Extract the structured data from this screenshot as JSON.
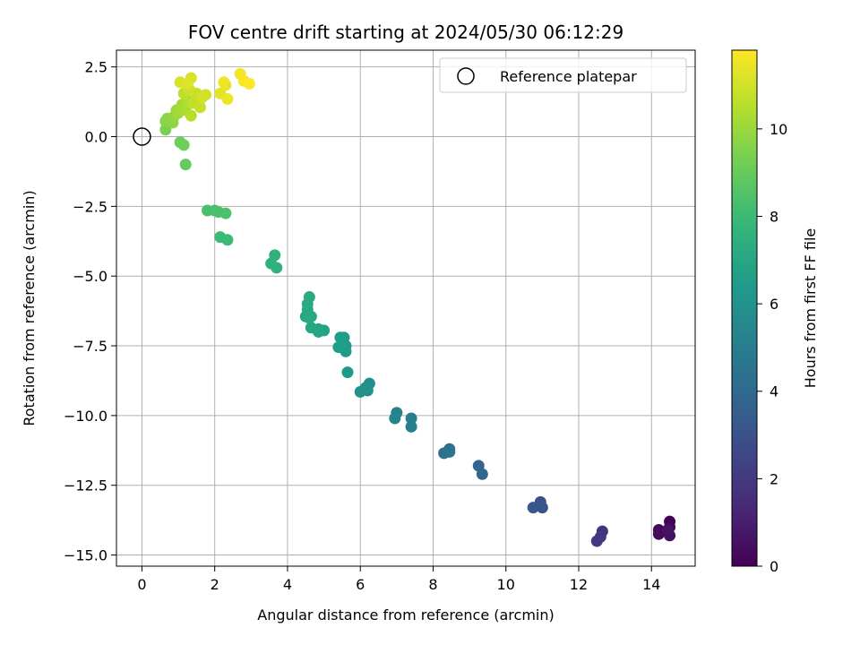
{
  "chart_data": {
    "type": "scatter",
    "title": "FOV centre drift starting at 2024/05/30 06:12:29",
    "xlabel": "Angular distance from reference (arcmin)",
    "ylabel": "Rotation from reference (arcmin)",
    "xlim": [
      -0.7,
      15.2
    ],
    "ylim": [
      -15.4,
      3.1
    ],
    "xticks": [
      0,
      2,
      4,
      6,
      8,
      10,
      12,
      14
    ],
    "yticks": [
      2.5,
      0.0,
      -2.5,
      -5.0,
      -7.5,
      -10.0,
      -12.5,
      -15.0
    ],
    "xtick_labels": [
      "0",
      "2",
      "4",
      "6",
      "8",
      "10",
      "12",
      "14"
    ],
    "ytick_labels": [
      "2.5",
      "0.0",
      "−2.5",
      "−5.0",
      "−7.5",
      "−10.0",
      "−12.5",
      "−15.0"
    ],
    "grid": true,
    "legend": {
      "placement": "top-right",
      "entries": [
        "Reference platepar"
      ]
    },
    "reference_point": {
      "x": 0,
      "y": 0
    },
    "colorbar": {
      "label": "Hours from first FF file",
      "min": 0,
      "max": 11.8,
      "ticks": [
        0,
        2,
        4,
        6,
        8,
        10
      ],
      "tick_labels": [
        "0",
        "2",
        "4",
        "6",
        "8",
        "10"
      ],
      "colormap": "viridis"
    },
    "points": [
      {
        "x": 14.5,
        "y": -13.8,
        "c": 0.0
      },
      {
        "x": 14.5,
        "y": -14.0,
        "c": 0.1
      },
      {
        "x": 14.2,
        "y": -14.1,
        "c": 0.2
      },
      {
        "x": 14.2,
        "y": -14.25,
        "c": 0.3
      },
      {
        "x": 14.5,
        "y": -14.3,
        "c": 0.5
      },
      {
        "x": 14.45,
        "y": -14.1,
        "c": 0.6
      },
      {
        "x": 12.65,
        "y": -14.15,
        "c": 1.8
      },
      {
        "x": 12.6,
        "y": -14.35,
        "c": 1.9
      },
      {
        "x": 12.5,
        "y": -14.5,
        "c": 2.0
      },
      {
        "x": 10.95,
        "y": -13.1,
        "c": 3.0
      },
      {
        "x": 11.0,
        "y": -13.3,
        "c": 3.1
      },
      {
        "x": 10.75,
        "y": -13.3,
        "c": 3.2
      },
      {
        "x": 9.25,
        "y": -11.8,
        "c": 3.8
      },
      {
        "x": 9.35,
        "y": -12.1,
        "c": 3.9
      },
      {
        "x": 8.45,
        "y": -11.2,
        "c": 4.3
      },
      {
        "x": 8.3,
        "y": -11.35,
        "c": 4.4
      },
      {
        "x": 8.45,
        "y": -11.3,
        "c": 4.5
      },
      {
        "x": 7.4,
        "y": -10.1,
        "c": 5.0
      },
      {
        "x": 7.4,
        "y": -10.4,
        "c": 5.1
      },
      {
        "x": 7.0,
        "y": -9.9,
        "c": 5.3
      },
      {
        "x": 6.95,
        "y": -10.1,
        "c": 5.4
      },
      {
        "x": 6.25,
        "y": -8.85,
        "c": 5.8
      },
      {
        "x": 6.2,
        "y": -9.1,
        "c": 5.9
      },
      {
        "x": 6.0,
        "y": -9.15,
        "c": 6.0
      },
      {
        "x": 6.15,
        "y": -9.0,
        "c": 6.0
      },
      {
        "x": 5.65,
        "y": -8.45,
        "c": 6.3
      },
      {
        "x": 5.6,
        "y": -7.5,
        "c": 6.4
      },
      {
        "x": 5.6,
        "y": -7.7,
        "c": 6.4
      },
      {
        "x": 5.55,
        "y": -7.2,
        "c": 6.5
      },
      {
        "x": 5.45,
        "y": -7.2,
        "c": 6.5
      },
      {
        "x": 5.4,
        "y": -7.55,
        "c": 6.6
      },
      {
        "x": 5.5,
        "y": -7.4,
        "c": 6.6
      },
      {
        "x": 5.0,
        "y": -6.95,
        "c": 6.8
      },
      {
        "x": 4.85,
        "y": -6.9,
        "c": 6.8
      },
      {
        "x": 4.85,
        "y": -7.0,
        "c": 6.9
      },
      {
        "x": 4.65,
        "y": -6.85,
        "c": 7.0
      },
      {
        "x": 4.65,
        "y": -6.45,
        "c": 7.0
      },
      {
        "x": 4.5,
        "y": -6.45,
        "c": 7.1
      },
      {
        "x": 4.55,
        "y": -6.2,
        "c": 7.1
      },
      {
        "x": 4.55,
        "y": -6.0,
        "c": 7.2
      },
      {
        "x": 4.6,
        "y": -5.75,
        "c": 7.2
      },
      {
        "x": 4.6,
        "y": -6.5,
        "c": 7.2
      },
      {
        "x": 3.65,
        "y": -4.25,
        "c": 7.5
      },
      {
        "x": 3.55,
        "y": -4.55,
        "c": 7.5
      },
      {
        "x": 3.7,
        "y": -4.7,
        "c": 7.6
      },
      {
        "x": 2.15,
        "y": -3.6,
        "c": 8.0
      },
      {
        "x": 2.35,
        "y": -3.7,
        "c": 8.0
      },
      {
        "x": 1.8,
        "y": -2.65,
        "c": 8.3
      },
      {
        "x": 2.0,
        "y": -2.65,
        "c": 8.3
      },
      {
        "x": 2.1,
        "y": -2.7,
        "c": 8.4
      },
      {
        "x": 2.3,
        "y": -2.75,
        "c": 8.4
      },
      {
        "x": 1.2,
        "y": -1.0,
        "c": 9.0
      },
      {
        "x": 1.05,
        "y": -0.2,
        "c": 9.1
      },
      {
        "x": 1.15,
        "y": -0.3,
        "c": 9.2
      },
      {
        "x": 0.65,
        "y": 0.25,
        "c": 9.4
      },
      {
        "x": 0.65,
        "y": 0.55,
        "c": 9.6
      },
      {
        "x": 0.7,
        "y": 0.65,
        "c": 9.7
      },
      {
        "x": 0.85,
        "y": 0.5,
        "c": 9.8
      },
      {
        "x": 0.9,
        "y": 0.75,
        "c": 9.9
      },
      {
        "x": 0.95,
        "y": 0.95,
        "c": 10.0
      },
      {
        "x": 1.0,
        "y": 0.85,
        "c": 10.1
      },
      {
        "x": 1.1,
        "y": 1.15,
        "c": 10.2
      },
      {
        "x": 1.2,
        "y": 0.95,
        "c": 10.3
      },
      {
        "x": 1.25,
        "y": 1.3,
        "c": 10.4
      },
      {
        "x": 1.35,
        "y": 0.75,
        "c": 10.5
      },
      {
        "x": 1.15,
        "y": 1.55,
        "c": 10.6
      },
      {
        "x": 1.4,
        "y": 1.2,
        "c": 10.7
      },
      {
        "x": 1.5,
        "y": 1.55,
        "c": 10.8
      },
      {
        "x": 1.6,
        "y": 1.05,
        "c": 10.8
      },
      {
        "x": 1.3,
        "y": 1.7,
        "c": 10.9
      },
      {
        "x": 1.65,
        "y": 1.4,
        "c": 11.0
      },
      {
        "x": 1.75,
        "y": 1.5,
        "c": 11.0
      },
      {
        "x": 1.05,
        "y": 1.95,
        "c": 11.1
      },
      {
        "x": 1.35,
        "y": 2.1,
        "c": 11.1
      },
      {
        "x": 1.25,
        "y": 1.9,
        "c": 11.2
      },
      {
        "x": 2.15,
        "y": 1.55,
        "c": 11.3
      },
      {
        "x": 2.3,
        "y": 1.85,
        "c": 11.4
      },
      {
        "x": 2.35,
        "y": 1.35,
        "c": 11.5
      },
      {
        "x": 2.25,
        "y": 1.95,
        "c": 11.5
      },
      {
        "x": 2.7,
        "y": 2.25,
        "c": 11.6
      },
      {
        "x": 2.8,
        "y": 2.0,
        "c": 11.7
      },
      {
        "x": 2.95,
        "y": 1.9,
        "c": 11.8
      }
    ]
  }
}
